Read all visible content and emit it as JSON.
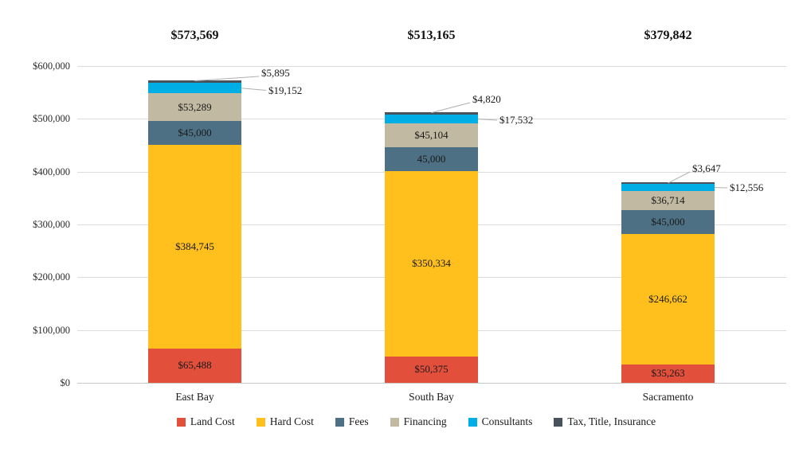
{
  "chart_data": {
    "type": "stacked-bar",
    "title": "",
    "categories": [
      "East Bay",
      "South Bay",
      "Sacramento"
    ],
    "totals": [
      "$573,569",
      "$513,165",
      "$379,842"
    ],
    "series": [
      {
        "name": "Land Cost",
        "color": "#E2503C",
        "values": [
          65488,
          50375,
          35263
        ],
        "labels": [
          "$65,488",
          "$50,375",
          "$35,263"
        ],
        "label_placement": "inside"
      },
      {
        "name": "Hard Cost",
        "color": "#FFC01E",
        "values": [
          384745,
          350334,
          246662
        ],
        "labels": [
          "$384,745",
          "$350,334",
          "$246,662"
        ],
        "label_placement": "inside"
      },
      {
        "name": "Fees",
        "color": "#4E7085",
        "values": [
          45000,
          45000,
          45000
        ],
        "labels": [
          "$45,000",
          "45,000",
          "$45,000"
        ],
        "label_placement": "inside"
      },
      {
        "name": "Financing",
        "color": "#C2B9A2",
        "values": [
          53289,
          45104,
          36714
        ],
        "labels": [
          "$53,289",
          "$45,104",
          "$36,714"
        ],
        "label_placement": "inside"
      },
      {
        "name": "Consultants",
        "color": "#00AEE6",
        "values": [
          19152,
          17532,
          12556
        ],
        "labels": [
          "$19,152",
          "$17,532",
          "$12,556"
        ],
        "label_placement": "callout"
      },
      {
        "name": "Tax, Title, Insurance",
        "color": "#47525C",
        "values": [
          5895,
          4820,
          3647
        ],
        "labels": [
          "$5,895",
          "$4,820",
          "$3,647"
        ],
        "label_placement": "callout"
      }
    ],
    "y_axis": {
      "min": 0,
      "max": 600000,
      "step": 100000,
      "tick_labels": [
        "$0",
        "$100,000",
        "$200,000",
        "$300,000",
        "$400,000",
        "$500,000",
        "$600,000"
      ]
    },
    "grid": true,
    "legend_position": "bottom",
    "colors": {
      "gridline": "#DCDCDC",
      "baseline": "#C8C8C8",
      "leader_line": "#AFAFAF",
      "label_text": "#1A1A1A"
    }
  }
}
